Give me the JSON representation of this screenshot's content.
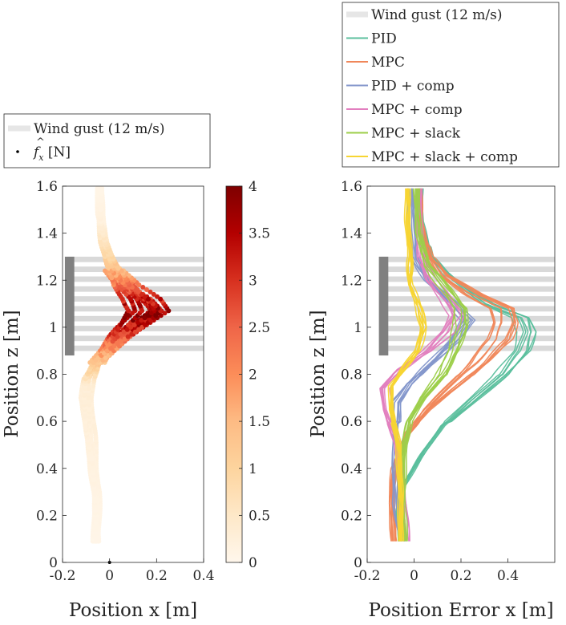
{
  "chart_data": [
    {
      "id": "left",
      "type": "scatter",
      "xlabel": "Position x [m]",
      "ylabel": "Position z [m]",
      "xlim": [
        -0.2,
        0.4
      ],
      "ylim": [
        0,
        1.6
      ],
      "xticks": [
        -0.2,
        0,
        0.2,
        0.4
      ],
      "xtick_labels": [
        "-0.2",
        "0",
        "0.2",
        "0.4"
      ],
      "yticks": [
        0,
        0.2,
        0.4,
        0.6,
        0.8,
        1,
        1.2,
        1.4,
        1.6
      ],
      "ytick_labels": [
        "0",
        "0.2",
        "0.4",
        "0.6",
        "0.8",
        "1",
        "1.2",
        "1.4",
        "1.6"
      ],
      "legend": {
        "placement": "top-left, above axes",
        "entries": [
          {
            "label": "Wind gust (12 m/s)",
            "kind": "band",
            "color": "#d9d9d9"
          },
          {
            "label_prefix": "f",
            "label_suffix": " [N]",
            "math": "\\hat{f}_x",
            "kind": "marker",
            "color": "#000000"
          }
        ]
      },
      "colorbar": {
        "colormap": "OrRd",
        "range": [
          0,
          4
        ],
        "ticks": [
          0,
          0.5,
          1,
          1.5,
          2,
          2.5,
          3,
          3.5,
          4
        ],
        "tick_labels": [
          "0",
          "0.5",
          "1",
          "1.5",
          "2",
          "2.5",
          "3",
          "3.5",
          "4"
        ]
      },
      "wind_gust": {
        "z_range": [
          0.88,
          1.3
        ],
        "x_start": -0.18,
        "x_end": 0.4,
        "color": "#d9d9d9",
        "stripe_count": 10
      },
      "gust_source_bar": {
        "x_range": [
          -0.19,
          -0.15
        ],
        "z_range": [
          0.88,
          1.3
        ],
        "color": "#808080"
      },
      "origin_marker": {
        "x": 0,
        "z": 0
      },
      "trajectories": {
        "count": 12,
        "centerline": [
          {
            "z": 0.09,
            "x": -0.06
          },
          {
            "z": 0.3,
            "x": -0.06
          },
          {
            "z": 0.45,
            "x": -0.08
          },
          {
            "z": 0.6,
            "x": -0.1
          },
          {
            "z": 0.7,
            "x": -0.11
          },
          {
            "z": 0.78,
            "x": -0.1
          },
          {
            "z": 0.84,
            "x": -0.07
          },
          {
            "z": 0.9,
            "x": -0.01
          },
          {
            "z": 0.96,
            "x": 0.06
          },
          {
            "z": 1.02,
            "x": 0.14
          },
          {
            "z": 1.07,
            "x": 0.2
          },
          {
            "z": 1.12,
            "x": 0.16
          },
          {
            "z": 1.18,
            "x": 0.08
          },
          {
            "z": 1.26,
            "x": 0.02
          },
          {
            "z": 1.36,
            "x": -0.02
          },
          {
            "z": 1.48,
            "x": -0.04
          },
          {
            "z": 1.6,
            "x": -0.04
          }
        ],
        "force": [
          {
            "z": 0.09,
            "f": 0.05
          },
          {
            "z": 0.75,
            "f": 0.3
          },
          {
            "z": 0.85,
            "f": 1.3
          },
          {
            "z": 0.95,
            "f": 2.6
          },
          {
            "z": 1.05,
            "f": 3.9
          },
          {
            "z": 1.12,
            "f": 3.2
          },
          {
            "z": 1.2,
            "f": 2.0
          },
          {
            "z": 1.3,
            "f": 0.9
          },
          {
            "z": 1.45,
            "f": 0.2
          },
          {
            "z": 1.6,
            "f": 0.05
          }
        ]
      }
    },
    {
      "id": "right",
      "type": "line",
      "xlabel": "Position Error x [m]",
      "ylabel": "Position z [m]",
      "xlim": [
        -0.2,
        0.6
      ],
      "ylim": [
        0,
        1.6
      ],
      "xticks": [
        -0.2,
        0,
        0.2,
        0.4
      ],
      "xtick_labels": [
        "-0.2",
        "0",
        "0.2",
        "0.4"
      ],
      "yticks": [
        0,
        0.2,
        0.4,
        0.6,
        0.8,
        1,
        1.2,
        1.4,
        1.6
      ],
      "ytick_labels": [
        "0",
        "0.2",
        "0.4",
        "0.6",
        "0.8",
        "1",
        "1.2",
        "1.4",
        "1.6"
      ],
      "legend": {
        "placement": "top, above axes",
        "entries": [
          {
            "label": "Wind gust (12 m/s)",
            "kind": "band",
            "color": "#e6e6e6"
          },
          {
            "label": "PID",
            "kind": "line",
            "color": "#5bbf9d"
          },
          {
            "label": "MPC",
            "kind": "line",
            "color": "#f0875a"
          },
          {
            "label": "PID + comp",
            "kind": "line",
            "color": "#8497cb"
          },
          {
            "label": "MPC + comp",
            "kind": "line",
            "color": "#e27fbf"
          },
          {
            "label": "MPC + slack",
            "kind": "line",
            "color": "#9ccf4a"
          },
          {
            "label": "MPC + slack + comp",
            "kind": "line",
            "color": "#f7d533"
          }
        ]
      },
      "wind_gust": {
        "z_range": [
          0.88,
          1.3
        ],
        "x_start": -0.14,
        "x_end": 0.6,
        "color": "#d9d9d9",
        "stripe_count": 10
      },
      "gust_source_bar": {
        "x_range": [
          -0.15,
          -0.11
        ],
        "z_range": [
          0.88,
          1.3
        ],
        "color": "#808080"
      },
      "series": [
        {
          "name": "PID",
          "color": "#5bbf9d",
          "runs": 8,
          "spread": 0.015,
          "points": [
            {
              "z": 0.09,
              "x": -0.06
            },
            {
              "z": 0.2,
              "x": -0.07
            },
            {
              "z": 0.32,
              "x": -0.05
            },
            {
              "z": 0.45,
              "x": 0.03
            },
            {
              "z": 0.58,
              "x": 0.12
            },
            {
              "z": 0.7,
              "x": 0.25
            },
            {
              "z": 0.8,
              "x": 0.36
            },
            {
              "z": 0.9,
              "x": 0.44
            },
            {
              "z": 0.98,
              "x": 0.46
            },
            {
              "z": 1.04,
              "x": 0.44
            },
            {
              "z": 1.1,
              "x": 0.3
            },
            {
              "z": 1.2,
              "x": 0.16
            },
            {
              "z": 1.3,
              "x": 0.07
            },
            {
              "z": 1.45,
              "x": 0.03
            },
            {
              "z": 1.6,
              "x": 0.03
            }
          ]
        },
        {
          "name": "MPC",
          "color": "#f0875a",
          "runs": 10,
          "spread": 0.015,
          "points": [
            {
              "z": 0.09,
              "x": -0.09
            },
            {
              "z": 0.25,
              "x": -0.1
            },
            {
              "z": 0.4,
              "x": -0.09
            },
            {
              "z": 0.55,
              "x": -0.03
            },
            {
              "z": 0.65,
              "x": 0.05
            },
            {
              "z": 0.75,
              "x": 0.16
            },
            {
              "z": 0.85,
              "x": 0.27
            },
            {
              "z": 0.95,
              "x": 0.36
            },
            {
              "z": 1.02,
              "x": 0.38
            },
            {
              "z": 1.08,
              "x": 0.37
            },
            {
              "z": 1.14,
              "x": 0.25
            },
            {
              "z": 1.22,
              "x": 0.12
            },
            {
              "z": 1.3,
              "x": 0.06
            },
            {
              "z": 1.45,
              "x": 0.02
            },
            {
              "z": 1.6,
              "x": 0.02
            }
          ]
        },
        {
          "name": "PID + comp",
          "color": "#8497cb",
          "runs": 8,
          "spread": 0.012,
          "points": [
            {
              "z": 0.09,
              "x": -0.05
            },
            {
              "z": 0.25,
              "x": -0.08
            },
            {
              "z": 0.4,
              "x": -0.08
            },
            {
              "z": 0.55,
              "x": -0.08
            },
            {
              "z": 0.68,
              "x": -0.08
            },
            {
              "z": 0.76,
              "x": -0.02
            },
            {
              "z": 0.85,
              "x": 0.08
            },
            {
              "z": 0.95,
              "x": 0.18
            },
            {
              "z": 1.03,
              "x": 0.24
            },
            {
              "z": 1.1,
              "x": 0.17
            },
            {
              "z": 1.2,
              "x": 0.06
            },
            {
              "z": 1.3,
              "x": 0.0
            },
            {
              "z": 1.45,
              "x": -0.01
            },
            {
              "z": 1.6,
              "x": -0.02
            }
          ]
        },
        {
          "name": "MPC + comp",
          "color": "#e27fbf",
          "runs": 8,
          "spread": 0.015,
          "points": [
            {
              "z": 0.09,
              "x": -0.03
            },
            {
              "z": 0.3,
              "x": -0.05
            },
            {
              "z": 0.5,
              "x": -0.07
            },
            {
              "z": 0.65,
              "x": -0.12
            },
            {
              "z": 0.74,
              "x": -0.13
            },
            {
              "z": 0.82,
              "x": -0.06
            },
            {
              "z": 0.9,
              "x": 0.06
            },
            {
              "z": 0.98,
              "x": 0.14
            },
            {
              "z": 1.05,
              "x": 0.18
            },
            {
              "z": 1.12,
              "x": 0.14
            },
            {
              "z": 1.2,
              "x": 0.07
            },
            {
              "z": 1.3,
              "x": 0.03
            },
            {
              "z": 1.45,
              "x": 0.02
            },
            {
              "z": 1.6,
              "x": 0.02
            }
          ]
        },
        {
          "name": "MPC + slack",
          "color": "#9ccf4a",
          "runs": 8,
          "spread": 0.012,
          "points": [
            {
              "z": 0.09,
              "x": -0.04
            },
            {
              "z": 0.3,
              "x": -0.05
            },
            {
              "z": 0.5,
              "x": -0.04
            },
            {
              "z": 0.6,
              "x": -0.02
            },
            {
              "z": 0.7,
              "x": 0.04
            },
            {
              "z": 0.8,
              "x": 0.12
            },
            {
              "z": 0.9,
              "x": 0.17
            },
            {
              "z": 1.0,
              "x": 0.2
            },
            {
              "z": 1.08,
              "x": 0.2
            },
            {
              "z": 1.16,
              "x": 0.14
            },
            {
              "z": 1.26,
              "x": 0.06
            },
            {
              "z": 1.4,
              "x": 0.02
            },
            {
              "z": 1.6,
              "x": 0.01
            }
          ]
        },
        {
          "name": "MPC + slack + comp",
          "color": "#f7d533",
          "runs": 10,
          "spread": 0.014,
          "points": [
            {
              "z": 0.09,
              "x": -0.06
            },
            {
              "z": 0.3,
              "x": -0.06
            },
            {
              "z": 0.5,
              "x": -0.07
            },
            {
              "z": 0.65,
              "x": -0.1
            },
            {
              "z": 0.75,
              "x": -0.1
            },
            {
              "z": 0.82,
              "x": -0.05
            },
            {
              "z": 0.9,
              "x": 0.01
            },
            {
              "z": 1.0,
              "x": 0.04
            },
            {
              "z": 1.08,
              "x": 0.02
            },
            {
              "z": 1.18,
              "x": -0.02
            },
            {
              "z": 1.3,
              "x": -0.02
            },
            {
              "z": 1.45,
              "x": -0.03
            },
            {
              "z": 1.6,
              "x": -0.03
            }
          ]
        }
      ]
    }
  ]
}
